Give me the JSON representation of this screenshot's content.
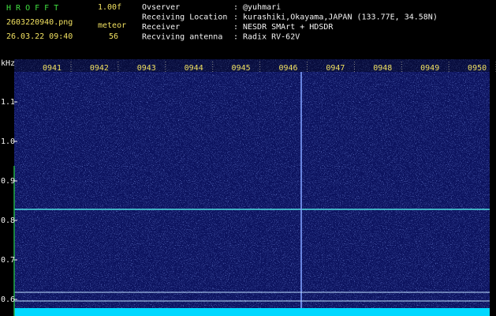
{
  "header": {
    "app": "H R O F F T",
    "version": "1.00f",
    "file": "2603220940.png",
    "datetime": "26.03.22 09:40",
    "count_label": "meteor",
    "count": "56"
  },
  "info": {
    "separator": ":",
    "rows": [
      {
        "label": "Ovserver",
        "value": "@yuhmari"
      },
      {
        "label": "Receiving Location",
        "value": "kurashiki,Okayama,JAPAN (133.77E, 34.58N)"
      },
      {
        "label": "Receiver",
        "value": "NESDR SMArt + HDSDR"
      },
      {
        "label": "Recviving antenna",
        "value": "Radix RV-62V"
      }
    ]
  },
  "spectrogram": {
    "y_unit": "kHz",
    "y_labels": [
      "1.1",
      "1.0",
      "0.9",
      "0.8",
      "0.7",
      "0.6"
    ],
    "time_labels": [
      "0941",
      "0942",
      "0943",
      "0944",
      "0945",
      "0946",
      "0947",
      "0948",
      "0949",
      "0950"
    ]
  }
}
